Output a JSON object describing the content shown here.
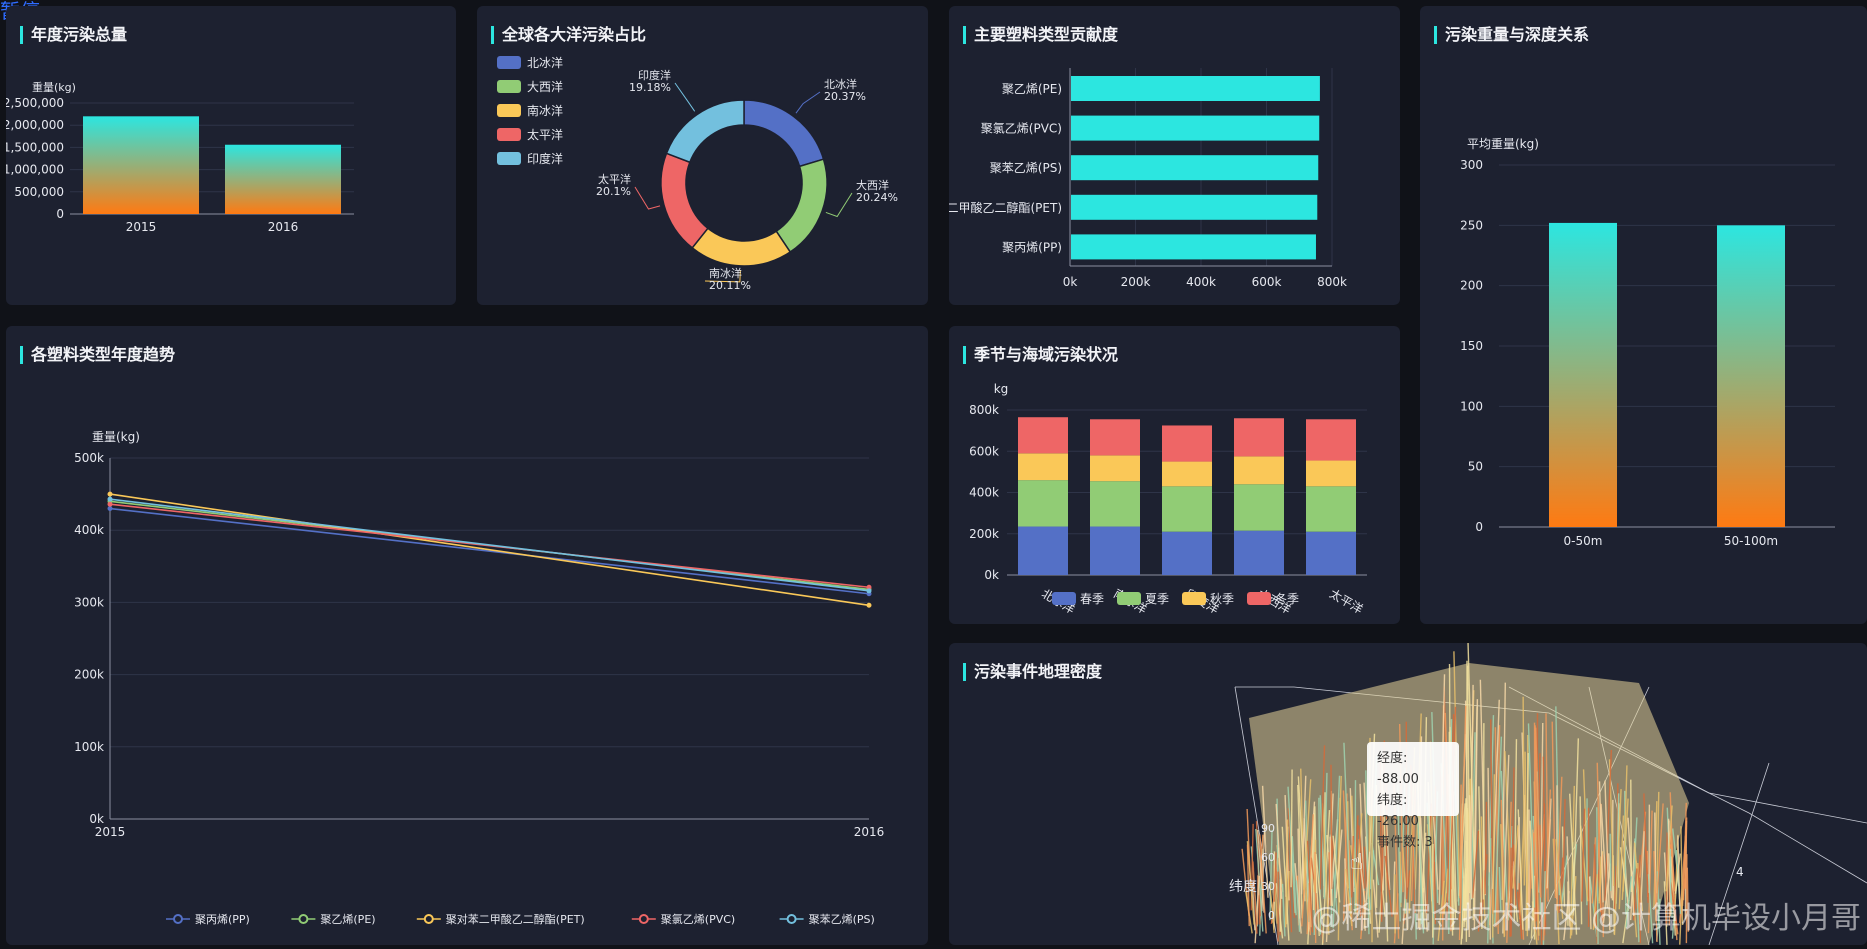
{
  "overlay_status": "暂停",
  "watermark": "@稀土掘金技术社区 @计算机毕设小月哥",
  "colors": {
    "accent": "#2ce6e0",
    "gradTop": "#2ce6e0",
    "gradBottom": "#ff7a12",
    "pie": [
      "#5470c6",
      "#91cc75",
      "#fac858",
      "#ee6666",
      "#73c0de"
    ],
    "lines": [
      "#5470c6",
      "#91cc75",
      "#fac858",
      "#ee6666",
      "#73c0de"
    ]
  },
  "chart_data": [
    {
      "id": "annual",
      "type": "bar",
      "title": "年度污染总量",
      "ylabel": "重量(kg)",
      "categories": [
        "2015",
        "2016"
      ],
      "values": [
        2200000,
        1560000
      ],
      "ylim": [
        0,
        2500000
      ],
      "yticks": [
        "0",
        "500,000",
        "1,000,000",
        "1,500,000",
        "2,000,000",
        "2,500,000"
      ]
    },
    {
      "id": "ocean",
      "type": "pie",
      "title": "全球各大洋污染占比",
      "labels": [
        "北冰洋",
        "大西洋",
        "南冰洋",
        "太平洋",
        "印度洋"
      ],
      "values": [
        20.37,
        20.24,
        20.11,
        20.1,
        19.18
      ],
      "pct_labels": [
        "20.37%",
        "20.24%",
        "20.11%",
        "20.1%",
        "19.18%"
      ]
    },
    {
      "id": "plastic",
      "type": "bar",
      "title": "主要塑料类型贡献度",
      "orientation": "horizontal",
      "categories": [
        "聚乙烯(PE)",
        "聚氯乙烯(PVC)",
        "聚苯乙烯(PS)",
        "邻苯二甲酸乙二醇酯(PET)",
        "聚丙烯(PP)"
      ],
      "values": [
        760000,
        758000,
        755000,
        752000,
        748000
      ],
      "xlim": [
        0,
        800000
      ],
      "xticks": [
        "0k",
        "200k",
        "400k",
        "600k",
        "800k"
      ]
    },
    {
      "id": "depth",
      "type": "bar",
      "title": "污染重量与深度关系",
      "ylabel": "平均重量(kg)",
      "categories": [
        "0-50m",
        "50-100m"
      ],
      "values": [
        252,
        250
      ],
      "ylim": [
        0,
        300
      ],
      "yticks": [
        "0",
        "50",
        "100",
        "150",
        "200",
        "250",
        "300"
      ]
    },
    {
      "id": "trend",
      "type": "line",
      "title": "各塑料类型年度趋势",
      "ylabel": "重量(kg)",
      "x": [
        "2015",
        "2016"
      ],
      "ylim": [
        0,
        500000
      ],
      "yticks": [
        "0k",
        "100k",
        "200k",
        "300k",
        "400k",
        "500k"
      ],
      "series": [
        {
          "name": "聚丙烯(PP)",
          "values": [
            430000,
            312000
          ]
        },
        {
          "name": "聚乙烯(PE)",
          "values": [
            440000,
            318000
          ]
        },
        {
          "name": "聚对苯二甲酸乙二醇酯(PET)",
          "values": [
            450000,
            296000
          ]
        },
        {
          "name": "聚氯乙烯(PVC)",
          "values": [
            436000,
            321000
          ]
        },
        {
          "name": "聚苯乙烯(PS)",
          "values": [
            443000,
            316000
          ]
        }
      ]
    },
    {
      "id": "season",
      "type": "bar",
      "title": "季节与海域污染状况",
      "stacked": true,
      "ylabel": "kg",
      "categories": [
        "北冰洋",
        "南冰洋",
        "印度洋",
        "大西洋",
        "太平洋"
      ],
      "ylim": [
        0,
        800000
      ],
      "yticks": [
        "0k",
        "200k",
        "400k",
        "600k",
        "800k"
      ],
      "series": [
        {
          "name": "春季",
          "values": [
            235000,
            235000,
            210000,
            215000,
            210000
          ]
        },
        {
          "name": "夏季",
          "values": [
            225000,
            220000,
            220000,
            225000,
            220000
          ]
        },
        {
          "name": "秋季",
          "values": [
            130000,
            125000,
            120000,
            135000,
            125000
          ]
        },
        {
          "name": "冬季",
          "values": [
            175000,
            175000,
            175000,
            185000,
            200000
          ]
        }
      ]
    },
    {
      "id": "geo",
      "type": "scatter",
      "title": "污染事件地理密度",
      "ylabel": "纬度",
      "yticks": [
        "0",
        "30",
        "60",
        "90"
      ],
      "xtick": "4",
      "tooltip": {
        "lon_label": "经度: -88.00",
        "lat_label": "纬度: -26.00",
        "count_label": "事件数: 3"
      }
    }
  ]
}
